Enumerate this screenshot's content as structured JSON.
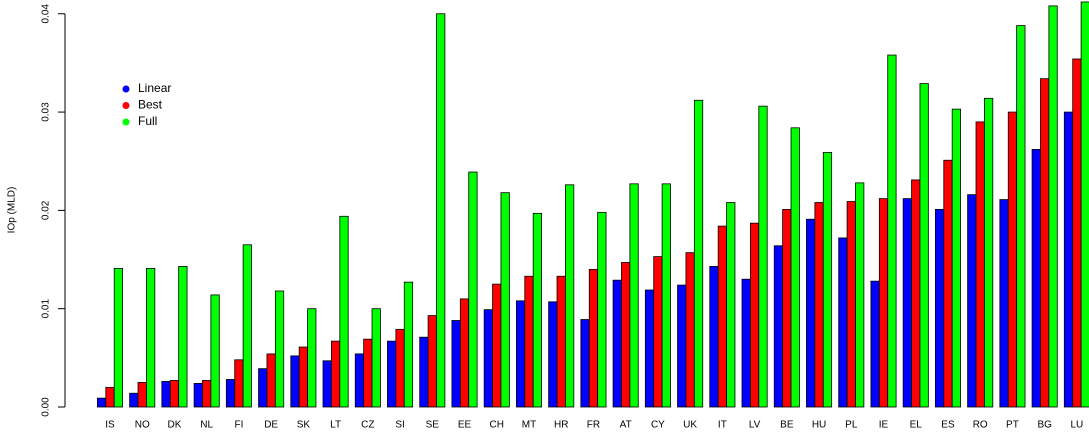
{
  "chart_data": {
    "type": "bar",
    "y_label": "IOp (MLD)",
    "categories": [
      "IS",
      "NO",
      "DK",
      "NL",
      "FI",
      "DE",
      "SK",
      "LT",
      "CZ",
      "SI",
      "SE",
      "EE",
      "CH",
      "MT",
      "HR",
      "FR",
      "AT",
      "CY",
      "UK",
      "IT",
      "LV",
      "BE",
      "HU",
      "PL",
      "IE",
      "EL",
      "ES",
      "RO",
      "PT",
      "BG",
      "LU"
    ],
    "series": [
      {
        "name": "Linear",
        "color": "#0000ff",
        "values": [
          0.0009,
          0.0014,
          0.0026,
          0.0024,
          0.0028,
          0.0039,
          0.0052,
          0.0047,
          0.0054,
          0.0067,
          0.0071,
          0.0088,
          0.0099,
          0.0108,
          0.0107,
          0.0089,
          0.0129,
          0.0119,
          0.0124,
          0.0143,
          0.013,
          0.0164,
          0.0191,
          0.0172,
          0.0128,
          0.0212,
          0.0201,
          0.0216,
          0.0211,
          0.0262,
          0.03
        ]
      },
      {
        "name": "Best",
        "color": "#ff0000",
        "values": [
          0.002,
          0.0025,
          0.0027,
          0.0027,
          0.0048,
          0.0054,
          0.0061,
          0.0067,
          0.0069,
          0.0079,
          0.0093,
          0.011,
          0.0125,
          0.0133,
          0.0133,
          0.014,
          0.0147,
          0.0153,
          0.0157,
          0.0184,
          0.0187,
          0.0201,
          0.0208,
          0.0209,
          0.0212,
          0.0231,
          0.0251,
          0.029,
          0.03,
          0.0334,
          0.0354
        ]
      },
      {
        "name": "Full",
        "color": "#00ff00",
        "values": [
          0.0141,
          0.0141,
          0.0143,
          0.0114,
          0.0165,
          0.0118,
          0.01,
          0.0194,
          0.01,
          0.0127,
          0.04,
          0.0239,
          0.0218,
          0.0197,
          0.0226,
          0.0198,
          0.0227,
          0.0227,
          0.0312,
          0.0208,
          0.0306,
          0.0284,
          0.0259,
          0.0228,
          0.0358,
          0.0329,
          0.0303,
          0.0314,
          0.0388,
          0.0408,
          0.0412
        ]
      }
    ],
    "ylim": [
      0,
      0.0414
    ],
    "yticks": [
      {
        "value": 0,
        "label": "0.00"
      },
      0.01,
      0.02,
      0.03,
      0.04
    ],
    "legend": "top-left"
  }
}
